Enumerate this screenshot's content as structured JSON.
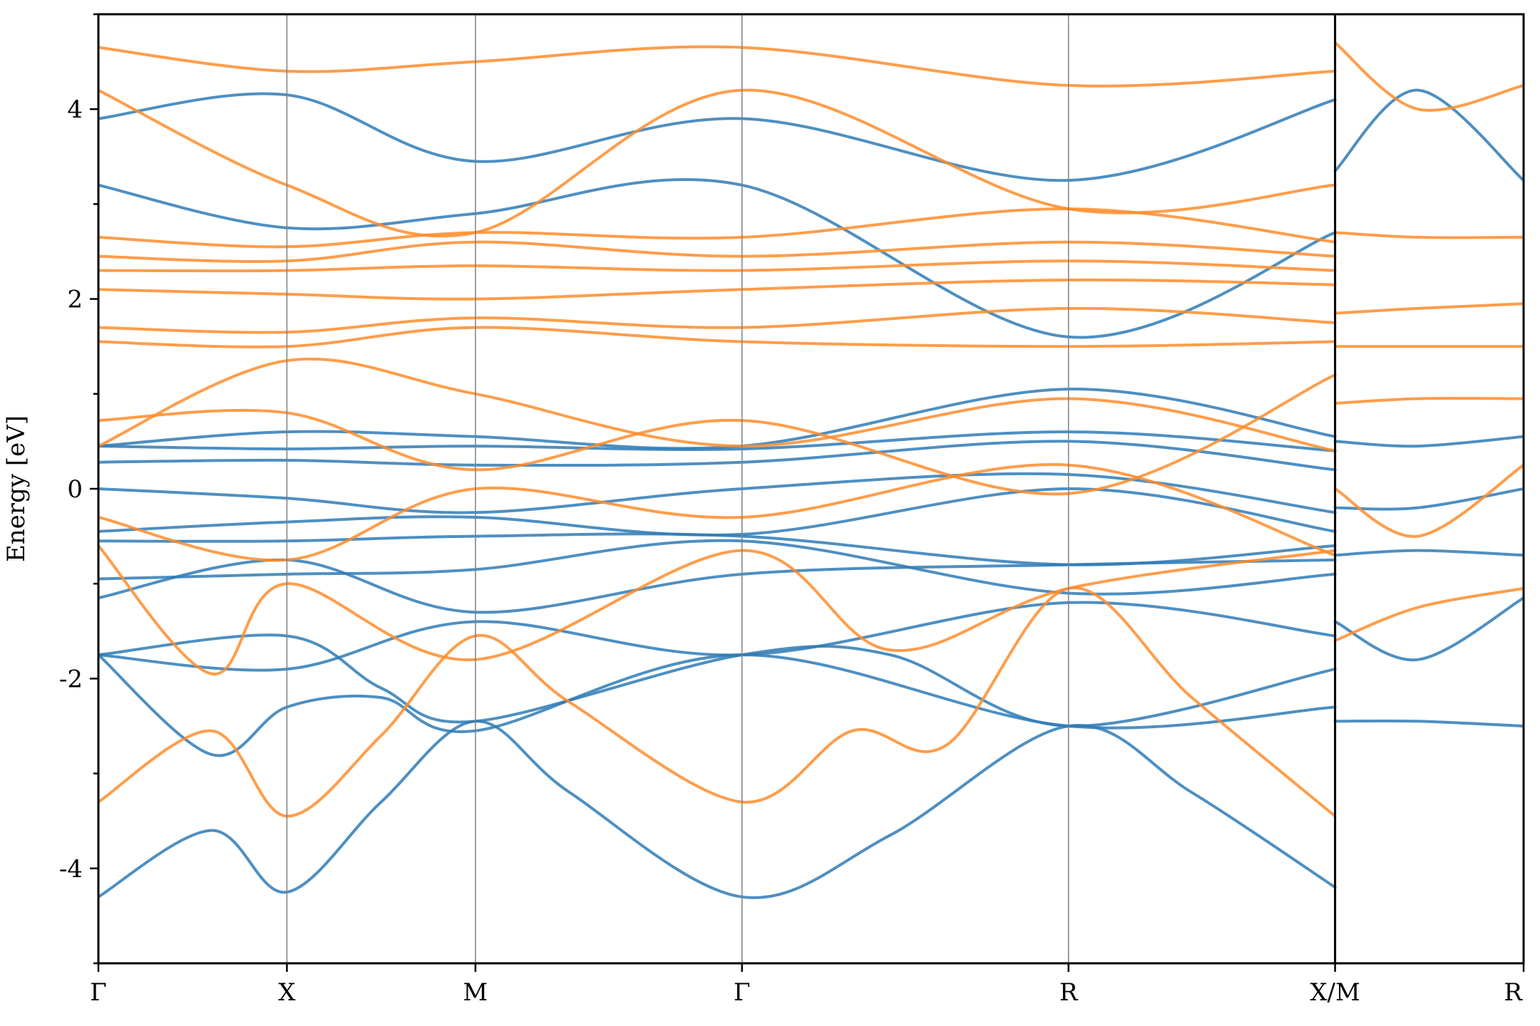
{
  "chart_data": {
    "type": "line",
    "title": "",
    "xlabel": "",
    "ylabel": "Energy [eV]",
    "ylim": [
      -5,
      5
    ],
    "y_ticks": [
      "-4",
      "-2",
      "0",
      "2",
      "4"
    ],
    "grid": false,
    "legend": "none",
    "k_points": [
      {
        "label": "Γ",
        "x": 0
      },
      {
        "label": "X",
        "x": 1
      },
      {
        "label": "M",
        "x": 2
      },
      {
        "label": "Γ",
        "x": 3.414
      },
      {
        "label": "R",
        "x": 5.146
      },
      {
        "label": "X/M",
        "x": 6.56
      },
      {
        "label": "R",
        "x": 7.56
      }
    ],
    "segment_breaks": [
      6.56
    ],
    "colors": {
      "series_a": "#2f7bb6",
      "series_b": "#ff8c2a"
    },
    "series": [
      {
        "color": "#2f7bb6",
        "x": [
          0,
          0.6,
          1,
          1.5,
          2,
          2.5,
          3.414,
          4.2,
          5.146,
          5.8,
          6.56
        ],
        "y": [
          -4.3,
          -3.6,
          -4.25,
          -3.3,
          -2.45,
          -3.2,
          -4.3,
          -3.65,
          -2.5,
          -3.2,
          -4.2
        ]
      },
      {
        "color": "#2f7bb6",
        "x": [
          0,
          0.6,
          1,
          1.5,
          2,
          3.414,
          5.146,
          6.56
        ],
        "y": [
          -1.75,
          -2.8,
          -2.3,
          -2.2,
          -2.55,
          -1.75,
          -2.5,
          -2.3
        ]
      },
      {
        "color": "#2f7bb6",
        "x": [
          0,
          1,
          1.5,
          2,
          3.414,
          4.2,
          5.146,
          6.56
        ],
        "y": [
          -1.75,
          -1.55,
          -2.1,
          -2.45,
          -1.75,
          -1.75,
          -2.5,
          -1.9
        ]
      },
      {
        "color": "#2f7bb6",
        "x": [
          0,
          1,
          2,
          3.414,
          5.146,
          6.56
        ],
        "y": [
          -1.75,
          -1.9,
          -1.4,
          -1.75,
          -1.2,
          -1.55
        ]
      },
      {
        "color": "#2f7bb6",
        "x": [
          0,
          1,
          2,
          3.414,
          5.146,
          6.56
        ],
        "y": [
          -1.15,
          -0.75,
          -1.3,
          -0.9,
          -0.8,
          -0.75
        ]
      },
      {
        "color": "#2f7bb6",
        "x": [
          0,
          1,
          2,
          3.414,
          5.146,
          6.56
        ],
        "y": [
          -0.95,
          -0.9,
          -0.85,
          -0.55,
          -1.1,
          -0.9
        ]
      },
      {
        "color": "#2f7bb6",
        "x": [
          0,
          1,
          2,
          3.414,
          5.146,
          6.56
        ],
        "y": [
          -0.55,
          -0.55,
          -0.5,
          -0.5,
          -0.8,
          -0.6
        ]
      },
      {
        "color": "#2f7bb6",
        "x": [
          0,
          1,
          2,
          3.414,
          5.146,
          6.56
        ],
        "y": [
          -0.45,
          -0.35,
          -0.3,
          -0.48,
          0.0,
          -0.45
        ]
      },
      {
        "color": "#2f7bb6",
        "x": [
          0,
          1,
          2,
          3.414,
          5.146,
          6.56
        ],
        "y": [
          0.0,
          -0.1,
          -0.25,
          0.0,
          0.15,
          -0.25
        ]
      },
      {
        "color": "#2f7bb6",
        "x": [
          0,
          1,
          2,
          3.414,
          5.146,
          6.56
        ],
        "y": [
          0.28,
          0.3,
          0.25,
          0.28,
          0.5,
          0.2
        ]
      },
      {
        "color": "#2f7bb6",
        "x": [
          0,
          1,
          2,
          3.414,
          5.146,
          6.56
        ],
        "y": [
          0.45,
          0.42,
          0.45,
          0.42,
          0.6,
          0.4
        ]
      },
      {
        "color": "#2f7bb6",
        "x": [
          0,
          1,
          2,
          3.414,
          5.146,
          6.56
        ],
        "y": [
          0.45,
          0.6,
          0.55,
          0.45,
          1.05,
          0.55
        ]
      },
      {
        "color": "#2f7bb6",
        "x": [
          0,
          1,
          2,
          3.414,
          5.146,
          6.56
        ],
        "y": [
          3.2,
          2.75,
          2.9,
          3.2,
          1.6,
          2.7
        ]
      },
      {
        "color": "#2f7bb6",
        "x": [
          0,
          1,
          2,
          3.414,
          5.146,
          6.56
        ],
        "y": [
          3.9,
          4.15,
          3.45,
          3.9,
          3.25,
          4.1
        ]
      },
      {
        "color": "#2f7bb6",
        "x": [
          6.56,
          7.0,
          7.56
        ],
        "y": [
          -2.45,
          -2.45,
          -2.5
        ]
      },
      {
        "color": "#2f7bb6",
        "x": [
          6.56,
          7.0,
          7.56
        ],
        "y": [
          -1.4,
          -1.8,
          -1.15
        ]
      },
      {
        "color": "#2f7bb6",
        "x": [
          6.56,
          7.0,
          7.56
        ],
        "y": [
          -0.7,
          -0.65,
          -0.7
        ]
      },
      {
        "color": "#2f7bb6",
        "x": [
          6.56,
          7.0,
          7.56
        ],
        "y": [
          -0.2,
          -0.2,
          0.0
        ]
      },
      {
        "color": "#2f7bb6",
        "x": [
          6.56,
          7.0,
          7.56
        ],
        "y": [
          0.5,
          0.45,
          0.55
        ]
      },
      {
        "color": "#2f7bb6",
        "x": [
          6.56,
          7.0,
          7.56
        ],
        "y": [
          3.35,
          4.2,
          3.25
        ]
      },
      {
        "color": "#ff8c2a",
        "x": [
          0,
          0.6,
          1,
          1.5,
          2,
          2.5,
          3.414,
          4.0,
          4.5,
          5.146,
          5.8,
          6.56
        ],
        "y": [
          -3.3,
          -2.55,
          -3.45,
          -2.6,
          -1.55,
          -2.25,
          -3.3,
          -2.55,
          -2.7,
          -1.05,
          -2.2,
          -3.45
        ]
      },
      {
        "color": "#ff8c2a",
        "x": [
          0,
          0.6,
          1,
          2,
          3.414,
          4.2,
          5.146,
          6.56
        ],
        "y": [
          -0.6,
          -1.95,
          -1.0,
          -1.8,
          -0.65,
          -1.7,
          -1.05,
          -0.65
        ]
      },
      {
        "color": "#ff8c2a",
        "x": [
          0,
          1,
          2,
          3.414,
          5.146,
          6.56
        ],
        "y": [
          -0.3,
          -0.75,
          0.0,
          -0.3,
          0.25,
          -0.7
        ]
      },
      {
        "color": "#ff8c2a",
        "x": [
          0,
          1,
          2,
          3.414,
          5.146,
          6.56
        ],
        "y": [
          0.45,
          1.35,
          1.0,
          0.45,
          0.95,
          0.4
        ]
      },
      {
        "color": "#ff8c2a",
        "x": [
          0,
          1,
          2,
          3.414,
          5.146,
          6.56
        ],
        "y": [
          0.72,
          0.8,
          0.2,
          0.72,
          -0.05,
          1.2
        ]
      },
      {
        "color": "#ff8c2a",
        "x": [
          0,
          1,
          2,
          3.414,
          5.146,
          6.56
        ],
        "y": [
          1.55,
          1.5,
          1.7,
          1.55,
          1.5,
          1.55
        ]
      },
      {
        "color": "#ff8c2a",
        "x": [
          0,
          1,
          2,
          3.414,
          5.146,
          6.56
        ],
        "y": [
          1.7,
          1.65,
          1.8,
          1.7,
          1.9,
          1.75
        ]
      },
      {
        "color": "#ff8c2a",
        "x": [
          0,
          1,
          2,
          3.414,
          5.146,
          6.56
        ],
        "y": [
          2.1,
          2.05,
          2.0,
          2.1,
          2.2,
          2.15
        ]
      },
      {
        "color": "#ff8c2a",
        "x": [
          0,
          1,
          2,
          3.414,
          5.146,
          6.56
        ],
        "y": [
          2.3,
          2.3,
          2.35,
          2.3,
          2.4,
          2.3
        ]
      },
      {
        "color": "#ff8c2a",
        "x": [
          0,
          1,
          2,
          3.414,
          5.146,
          6.56
        ],
        "y": [
          2.45,
          2.4,
          2.6,
          2.45,
          2.6,
          2.45
        ]
      },
      {
        "color": "#ff8c2a",
        "x": [
          0,
          1,
          2,
          3.414,
          5.146,
          6.56
        ],
        "y": [
          2.65,
          2.55,
          2.7,
          2.65,
          2.95,
          2.6
        ]
      },
      {
        "color": "#ff8c2a",
        "x": [
          0,
          1,
          2,
          3.414,
          5.146,
          6.56
        ],
        "y": [
          4.2,
          3.2,
          2.7,
          4.2,
          2.95,
          3.2
        ]
      },
      {
        "color": "#ff8c2a",
        "x": [
          0,
          1,
          2,
          3.414,
          5.146,
          6.56
        ],
        "y": [
          4.65,
          4.4,
          4.5,
          4.65,
          4.25,
          4.4
        ]
      },
      {
        "color": "#ff8c2a",
        "x": [
          6.56,
          7.0,
          7.56
        ],
        "y": [
          -1.6,
          -1.25,
          -1.05
        ]
      },
      {
        "color": "#ff8c2a",
        "x": [
          6.56,
          7.0,
          7.56
        ],
        "y": [
          0.0,
          -0.5,
          0.25
        ]
      },
      {
        "color": "#ff8c2a",
        "x": [
          6.56,
          7.0,
          7.56
        ],
        "y": [
          0.9,
          0.95,
          0.95
        ]
      },
      {
        "color": "#ff8c2a",
        "x": [
          6.56,
          7.0,
          7.56
        ],
        "y": [
          1.5,
          1.5,
          1.5
        ]
      },
      {
        "color": "#ff8c2a",
        "x": [
          6.56,
          7.0,
          7.56
        ],
        "y": [
          1.85,
          1.9,
          1.95
        ]
      },
      {
        "color": "#ff8c2a",
        "x": [
          6.56,
          7.0,
          7.56
        ],
        "y": [
          2.7,
          2.65,
          2.65
        ]
      },
      {
        "color": "#ff8c2a",
        "x": [
          6.56,
          7.0,
          7.56
        ],
        "y": [
          4.7,
          4.0,
          4.25
        ]
      }
    ]
  }
}
